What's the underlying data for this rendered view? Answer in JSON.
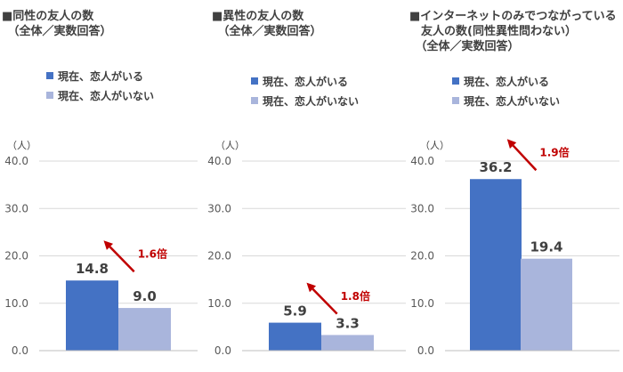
{
  "legend": {
    "present": "現在、恋人がいる",
    "absent": "現在、恋人がいない"
  },
  "colors": {
    "present": "#4472c4",
    "absent": "#a9b5dc",
    "arrow": "#c00000"
  },
  "chart_data": [
    {
      "type": "bar",
      "title": "■同性の友人の数\n　（全体／実数回答）",
      "unit": "（人）",
      "categories": [
        "現在、恋人がいる",
        "現在、恋人がいない"
      ],
      "values": [
        14.8,
        9.0
      ],
      "labels": [
        "14.8",
        "9.0"
      ],
      "ratio": "1.6倍",
      "yticks": [
        "0.0",
        "10.0",
        "20.0",
        "30.0",
        "40.0"
      ],
      "ylim": [
        0,
        40
      ]
    },
    {
      "type": "bar",
      "title": "■異性の友人の数\n　（全体／実数回答）",
      "unit": "（人）",
      "categories": [
        "現在、恋人がいる",
        "現在、恋人がいない"
      ],
      "values": [
        5.9,
        3.3
      ],
      "labels": [
        "5.9",
        "3.3"
      ],
      "ratio": "1.8倍",
      "yticks": [
        "0.0",
        "10.0",
        "20.0",
        "30.0",
        "40.0"
      ],
      "ylim": [
        0,
        40
      ]
    },
    {
      "type": "bar",
      "title": "■インターネットのみでつながっている\n　友人の数(同性異性問わない）\n　（全体／実数回答）",
      "unit": "（人）",
      "categories": [
        "現在、恋人がいる",
        "現在、恋人がいない"
      ],
      "values": [
        36.2,
        19.4
      ],
      "labels": [
        "36.2",
        "19.4"
      ],
      "ratio": "1.9倍",
      "yticks": [
        "0.0",
        "10.0",
        "20.0",
        "30.0",
        "40.0"
      ],
      "ylim": [
        0,
        40
      ]
    }
  ]
}
